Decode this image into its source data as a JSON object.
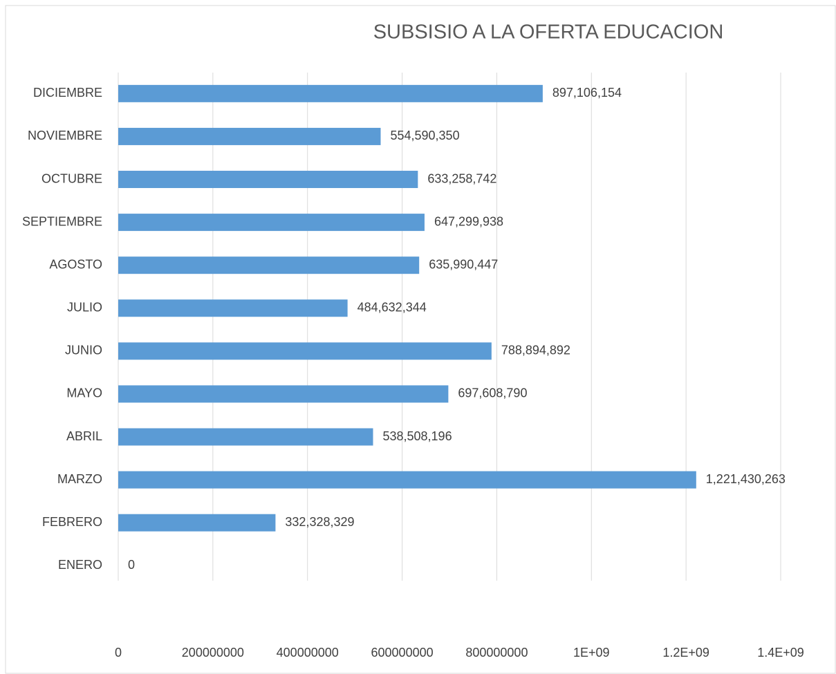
{
  "chart_data": {
    "type": "bar",
    "orientation": "horizontal",
    "title": "SUBSISIO A LA OFERTA EDUCACION",
    "categories": [
      "ENERO",
      "FEBRERO",
      "MARZO",
      "ABRIL",
      "MAYO",
      "JUNIO",
      "JULIO",
      "AGOSTO",
      "SEPTIEMBRE",
      "OCTUBRE",
      "NOVIEMBRE",
      "DICIEMBRE"
    ],
    "values": [
      0,
      332328329,
      1221430263,
      538508196,
      697608790,
      788894892,
      484632344,
      635990447,
      647299938,
      633258742,
      554590350,
      897106154
    ],
    "value_labels": [
      "0",
      "332,328,329",
      "1,221,430,263",
      "538,508,196",
      "697,608,790",
      "788,894,892",
      "484,632,344",
      "635,990,447",
      "647,299,938",
      "633,258,742",
      "554,590,350",
      "897,106,154"
    ],
    "color": "#5b9bd5",
    "xlim": [
      0,
      1400000000
    ],
    "xticks": [
      0,
      200000000,
      400000000,
      600000000,
      800000000,
      {
        "value": 1000000000,
        "label": "1E+09"
      },
      {
        "value": 1200000000,
        "label": "1.2E+09"
      },
      {
        "value": 1400000000,
        "label": "1.4E+09"
      }
    ],
    "grid": true
  }
}
